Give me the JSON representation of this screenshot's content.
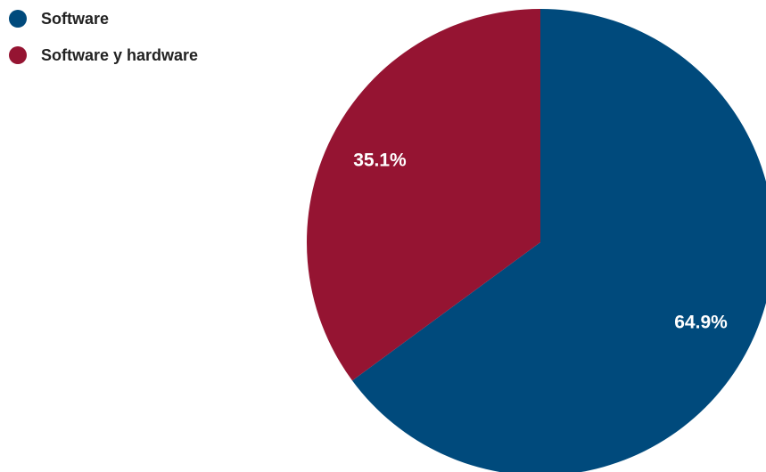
{
  "chart_data": {
    "type": "pie",
    "title": "",
    "legend_position": "top-left",
    "slices": [
      {
        "name": "Software",
        "value": 64.9,
        "label": "64.9%",
        "color": "#004a7c"
      },
      {
        "name": "Software y hardware",
        "value": 35.1,
        "label": "35.1%",
        "color": "#951432"
      }
    ]
  }
}
